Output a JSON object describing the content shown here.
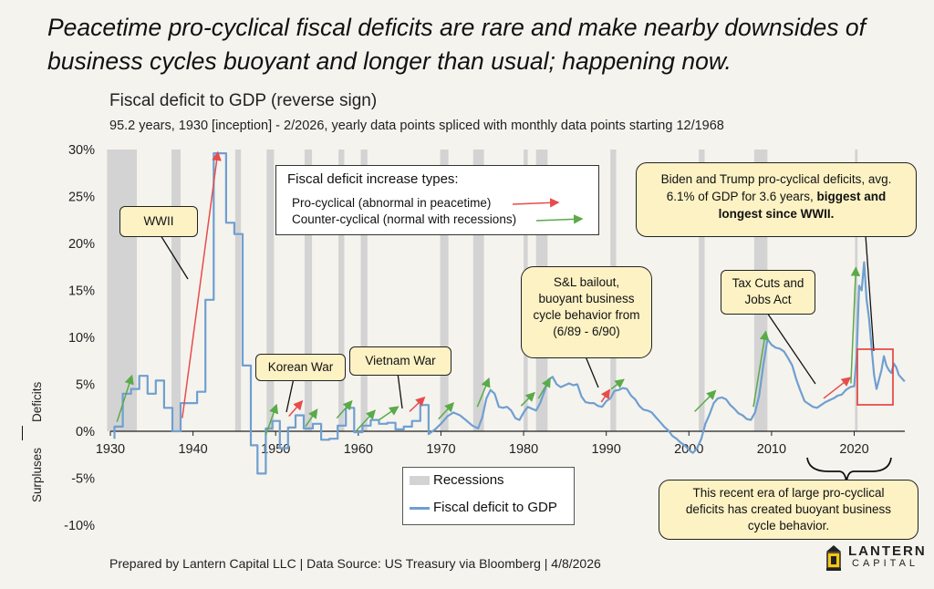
{
  "headline": "Peacetime pro-cyclical fiscal deficits are rare and make nearby downsides of business cycles buoyant and longer than usual; happening now.",
  "footer": "Prepared by Lantern Capital LLC | Data Source: US Treasury via Bloomberg | 4/8/2026",
  "logo": {
    "word1": "LANTERN",
    "word2": "CAPITAL",
    "icon": "lantern-icon"
  },
  "y_side_labels": {
    "upper": "Deficits",
    "lower": "Surpluses"
  },
  "colors": {
    "series": "#6f9fd1",
    "recession": "#d3d3d3",
    "pro": "#e74c4c",
    "counter": "#5aaa4a",
    "callout_bg": "#fdf2c4",
    "highlight": "#e53935"
  },
  "legend_types": {
    "title": "Fiscal deficit increase types:",
    "pro": "Pro-cyclical (abnormal in peacetime)",
    "counter": "Counter-cyclical (normal with recessions)"
  },
  "legend_series": {
    "recessions": "Recessions",
    "line": "Fiscal deficit to GDP"
  },
  "callouts": {
    "wwii": "WWII",
    "korean": "Korean War",
    "vietnam": "Vietnam War",
    "sl": [
      "S&L bailout,",
      "buoyant business",
      "cycle behavior from",
      "(6/89 - 6/90)"
    ],
    "tcja": [
      "Tax Cuts and",
      "Jobs Act"
    ],
    "biden_plain1": "Biden and Trump pro-cyclical deficits, avg.",
    "biden_plain2": "6.1% of GDP for 3.6 years, ",
    "biden_bold2": "biggest and",
    "biden_bold3": "longest since WWII.",
    "recent": [
      "This recent era of large pro-cyclical",
      "deficits has created buoyant business",
      "cycle behavior."
    ]
  },
  "chart_data": {
    "type": "line",
    "title": "Fiscal deficit to GDP (reverse sign)",
    "subtitle": "95.2 years, 1930 [inception] - 2/2026, yearly data points spliced with monthly data points starting 12/1968",
    "xlim": [
      1930,
      2028
    ],
    "ylim": [
      -10,
      30
    ],
    "x_ticks": [
      1930,
      1940,
      1950,
      1960,
      1970,
      1980,
      1990,
      2000,
      2010,
      2020
    ],
    "y_ticks": [
      30,
      25,
      20,
      15,
      10,
      5,
      0,
      -5,
      -10
    ],
    "y_tick_labels": [
      "30%",
      "25%",
      "20%",
      "15%",
      "10%",
      "5%",
      "0%",
      "-5%",
      "-10%"
    ],
    "recessions": [
      [
        1929.6,
        1933.2
      ],
      [
        1937.4,
        1938.5
      ],
      [
        1945.1,
        1945.8
      ],
      [
        1948.9,
        1949.8
      ],
      [
        1953.5,
        1954.4
      ],
      [
        1957.6,
        1958.3
      ],
      [
        1960.3,
        1961.1
      ],
      [
        1969.9,
        1970.9
      ],
      [
        1973.9,
        1975.2
      ],
      [
        1980.0,
        1980.5
      ],
      [
        1981.5,
        1982.9
      ],
      [
        1990.5,
        1991.2
      ],
      [
        2001.2,
        2001.9
      ],
      [
        2007.9,
        2009.5
      ],
      [
        2020.1,
        2020.4
      ]
    ],
    "series": [
      {
        "name": "Fiscal deficit to GDP",
        "points": [
          [
            1930.5,
            -0.8
          ],
          [
            1930.5,
            0.5
          ],
          [
            1931.5,
            0.5
          ],
          [
            1931.5,
            4.0
          ],
          [
            1932.5,
            4.0
          ],
          [
            1932.5,
            4.5
          ],
          [
            1933.5,
            4.5
          ],
          [
            1933.5,
            5.9
          ],
          [
            1934.5,
            5.9
          ],
          [
            1934.5,
            4.0
          ],
          [
            1935.5,
            4.0
          ],
          [
            1935.5,
            5.4
          ],
          [
            1936.5,
            5.4
          ],
          [
            1936.5,
            2.5
          ],
          [
            1937.5,
            2.5
          ],
          [
            1937.5,
            0.0
          ],
          [
            1938.5,
            0.0
          ],
          [
            1938.5,
            3.0
          ],
          [
            1940.5,
            3.0
          ],
          [
            1940.5,
            4.2
          ],
          [
            1941.5,
            4.2
          ],
          [
            1941.5,
            14.0
          ],
          [
            1942.5,
            14.0
          ],
          [
            1942.5,
            29.6
          ],
          [
            1944.0,
            29.6
          ],
          [
            1944.0,
            22.2
          ],
          [
            1945.0,
            22.2
          ],
          [
            1945.0,
            21.0
          ],
          [
            1946.0,
            21.0
          ],
          [
            1946.0,
            7.0
          ],
          [
            1947.0,
            7.0
          ],
          [
            1947.0,
            -1.5
          ],
          [
            1947.8,
            -1.5
          ],
          [
            1947.8,
            -4.5
          ],
          [
            1948.8,
            -4.5
          ],
          [
            1948.8,
            0.3
          ],
          [
            1949.6,
            0.3
          ],
          [
            1949.6,
            1.1
          ],
          [
            1950.5,
            1.1
          ],
          [
            1950.5,
            -1.8
          ],
          [
            1951.5,
            -1.8
          ],
          [
            1951.5,
            0.4
          ],
          [
            1952.4,
            0.4
          ],
          [
            1952.4,
            1.7
          ],
          [
            1953.4,
            1.7
          ],
          [
            1953.4,
            0.3
          ],
          [
            1954.5,
            0.3
          ],
          [
            1954.5,
            0.8
          ],
          [
            1955.5,
            0.8
          ],
          [
            1955.5,
            -0.9
          ],
          [
            1956.5,
            -0.9
          ],
          [
            1956.5,
            -0.8
          ],
          [
            1957.5,
            -0.8
          ],
          [
            1957.5,
            0.6
          ],
          [
            1958.5,
            0.6
          ],
          [
            1958.5,
            2.5
          ],
          [
            1959.5,
            2.5
          ],
          [
            1959.5,
            -0.1
          ],
          [
            1960.5,
            -0.1
          ],
          [
            1960.5,
            0.6
          ],
          [
            1961.5,
            0.6
          ],
          [
            1961.5,
            1.2
          ],
          [
            1962.5,
            1.2
          ],
          [
            1962.5,
            0.8
          ],
          [
            1963.5,
            0.8
          ],
          [
            1963.5,
            0.9
          ],
          [
            1964.5,
            0.9
          ],
          [
            1964.5,
            0.2
          ],
          [
            1965.5,
            0.2
          ],
          [
            1965.5,
            0.5
          ],
          [
            1966.5,
            0.5
          ],
          [
            1966.5,
            1.1
          ],
          [
            1967.5,
            1.1
          ],
          [
            1967.5,
            2.8
          ],
          [
            1968.5,
            2.8
          ],
          [
            1968.5,
            -0.3
          ],
          [
            1969.3,
            0.2
          ],
          [
            1970.0,
            0.8
          ],
          [
            1970.8,
            1.6
          ],
          [
            1971.5,
            2.0
          ],
          [
            1972.3,
            1.7
          ],
          [
            1973.0,
            1.2
          ],
          [
            1973.8,
            0.6
          ],
          [
            1974.5,
            0.3
          ],
          [
            1975.0,
            1.5
          ],
          [
            1975.5,
            3.5
          ],
          [
            1976.0,
            4.4
          ],
          [
            1976.5,
            4.0
          ],
          [
            1977.0,
            2.6
          ],
          [
            1977.5,
            2.5
          ],
          [
            1978.0,
            2.6
          ],
          [
            1978.5,
            2.2
          ],
          [
            1979.0,
            1.4
          ],
          [
            1979.5,
            1.2
          ],
          [
            1980.0,
            2.0
          ],
          [
            1980.5,
            2.6
          ],
          [
            1981.0,
            2.4
          ],
          [
            1981.5,
            2.2
          ],
          [
            1982.0,
            3.0
          ],
          [
            1982.5,
            4.2
          ],
          [
            1983.0,
            5.5
          ],
          [
            1983.5,
            5.8
          ],
          [
            1984.0,
            5.0
          ],
          [
            1984.5,
            4.7
          ],
          [
            1985.0,
            4.9
          ],
          [
            1985.5,
            5.1
          ],
          [
            1986.0,
            4.9
          ],
          [
            1986.5,
            5.0
          ],
          [
            1987.0,
            3.7
          ],
          [
            1987.5,
            3.1
          ],
          [
            1988.0,
            3.0
          ],
          [
            1988.5,
            3.0
          ],
          [
            1989.0,
            2.7
          ],
          [
            1989.5,
            2.6
          ],
          [
            1990.0,
            3.2
          ],
          [
            1990.5,
            3.5
          ],
          [
            1991.0,
            4.3
          ],
          [
            1991.5,
            4.4
          ],
          [
            1992.0,
            4.6
          ],
          [
            1992.5,
            4.5
          ],
          [
            1993.0,
            3.8
          ],
          [
            1993.5,
            3.4
          ],
          [
            1994.0,
            2.7
          ],
          [
            1994.5,
            2.3
          ],
          [
            1995.0,
            2.2
          ],
          [
            1995.5,
            2.0
          ],
          [
            1996.0,
            1.5
          ],
          [
            1996.5,
            1.0
          ],
          [
            1997.0,
            0.5
          ],
          [
            1997.5,
            0.1
          ],
          [
            1998.0,
            -0.5
          ],
          [
            1998.5,
            -0.8
          ],
          [
            1999.0,
            -1.2
          ],
          [
            1999.5,
            -1.5
          ],
          [
            2000.0,
            -2.0
          ],
          [
            2000.5,
            -2.3
          ],
          [
            2001.0,
            -1.8
          ],
          [
            2001.5,
            -0.8
          ],
          [
            2002.0,
            0.8
          ],
          [
            2002.5,
            1.8
          ],
          [
            2003.0,
            3.0
          ],
          [
            2003.5,
            3.5
          ],
          [
            2004.0,
            3.6
          ],
          [
            2004.5,
            3.4
          ],
          [
            2005.0,
            2.8
          ],
          [
            2005.5,
            2.4
          ],
          [
            2006.0,
            1.9
          ],
          [
            2006.5,
            1.7
          ],
          [
            2007.0,
            1.3
          ],
          [
            2007.5,
            1.2
          ],
          [
            2008.0,
            2.0
          ],
          [
            2008.5,
            3.8
          ],
          [
            2009.0,
            7.0
          ],
          [
            2009.5,
            9.8
          ],
          [
            2010.0,
            9.2
          ],
          [
            2010.5,
            8.9
          ],
          [
            2011.0,
            8.8
          ],
          [
            2011.5,
            8.5
          ],
          [
            2012.0,
            7.8
          ],
          [
            2012.5,
            7.0
          ],
          [
            2013.0,
            5.5
          ],
          [
            2013.5,
            4.3
          ],
          [
            2014.0,
            3.2
          ],
          [
            2014.5,
            2.9
          ],
          [
            2015.0,
            2.6
          ],
          [
            2015.5,
            2.5
          ],
          [
            2016.0,
            2.8
          ],
          [
            2016.5,
            3.1
          ],
          [
            2017.0,
            3.3
          ],
          [
            2017.5,
            3.5
          ],
          [
            2018.0,
            3.8
          ],
          [
            2018.5,
            3.9
          ],
          [
            2019.0,
            4.4
          ],
          [
            2019.5,
            4.7
          ],
          [
            2020.0,
            4.8
          ],
          [
            2020.3,
            8.0
          ],
          [
            2020.6,
            15.5
          ],
          [
            2020.9,
            15.0
          ],
          [
            2021.2,
            18.0
          ],
          [
            2021.5,
            14.0
          ],
          [
            2021.8,
            12.0
          ],
          [
            2022.1,
            9.0
          ],
          [
            2022.4,
            6.0
          ],
          [
            2022.7,
            4.5
          ],
          [
            2023.0,
            5.5
          ],
          [
            2023.3,
            6.5
          ],
          [
            2023.6,
            8.0
          ],
          [
            2023.9,
            7.0
          ],
          [
            2024.2,
            6.5
          ],
          [
            2024.5,
            6.2
          ],
          [
            2024.8,
            7.2
          ],
          [
            2025.1,
            6.8
          ],
          [
            2025.4,
            6.0
          ],
          [
            2025.7,
            5.7
          ],
          [
            2026.1,
            5.3
          ]
        ]
      }
    ],
    "arrows": [
      {
        "type": "counter",
        "from": [
          1930.8,
          1.0
        ],
        "to": [
          1932.6,
          5.9
        ]
      },
      {
        "type": "pro",
        "from": [
          1938.7,
          1.4
        ],
        "to": [
          1943.0,
          29.7
        ]
      },
      {
        "type": "counter",
        "from": [
          1948.8,
          -0.4
        ],
        "to": [
          1950.1,
          2.8
        ]
      },
      {
        "type": "pro",
        "from": [
          1951.6,
          1.6
        ],
        "to": [
          1953.2,
          3.2
        ]
      },
      {
        "type": "counter",
        "from": [
          1953.6,
          0.5
        ],
        "to": [
          1955.0,
          2.3
        ]
      },
      {
        "type": "counter",
        "from": [
          1957.4,
          1.4
        ],
        "to": [
          1959.2,
          3.2
        ]
      },
      {
        "type": "counter",
        "from": [
          1959.8,
          0.1
        ],
        "to": [
          1962.0,
          2.2
        ]
      },
      {
        "type": "counter",
        "from": [
          1962.5,
          1.2
        ],
        "to": [
          1964.8,
          2.6
        ]
      },
      {
        "type": "pro",
        "from": [
          1966.2,
          2.1
        ],
        "to": [
          1968.0,
          3.6
        ]
      },
      {
        "type": "counter",
        "from": [
          1969.7,
          1.3
        ],
        "to": [
          1971.5,
          3.0
        ]
      },
      {
        "type": "counter",
        "from": [
          1974.4,
          2.6
        ],
        "to": [
          1975.8,
          5.6
        ]
      },
      {
        "type": "counter",
        "from": [
          1979.7,
          2.7
        ],
        "to": [
          1981.3,
          4.1
        ]
      },
      {
        "type": "counter",
        "from": [
          1981.8,
          3.5
        ],
        "to": [
          1983.2,
          5.6
        ]
      },
      {
        "type": "pro",
        "from": [
          1989.4,
          3.1
        ],
        "to": [
          1990.4,
          4.4
        ]
      },
      {
        "type": "counter",
        "from": [
          1990.6,
          4.5
        ],
        "to": [
          1992.1,
          5.5
        ]
      },
      {
        "type": "counter",
        "from": [
          2000.7,
          2.1
        ],
        "to": [
          2003.2,
          4.3
        ]
      },
      {
        "type": "counter",
        "from": [
          2007.8,
          2.6
        ],
        "to": [
          2009.3,
          10.6
        ]
      },
      {
        "type": "pro",
        "from": [
          2016.3,
          3.5
        ],
        "to": [
          2019.5,
          5.7
        ]
      },
      {
        "type": "counter",
        "from": [
          2019.6,
          5.1
        ],
        "to": [
          2020.2,
          17.4
        ]
      }
    ]
  }
}
